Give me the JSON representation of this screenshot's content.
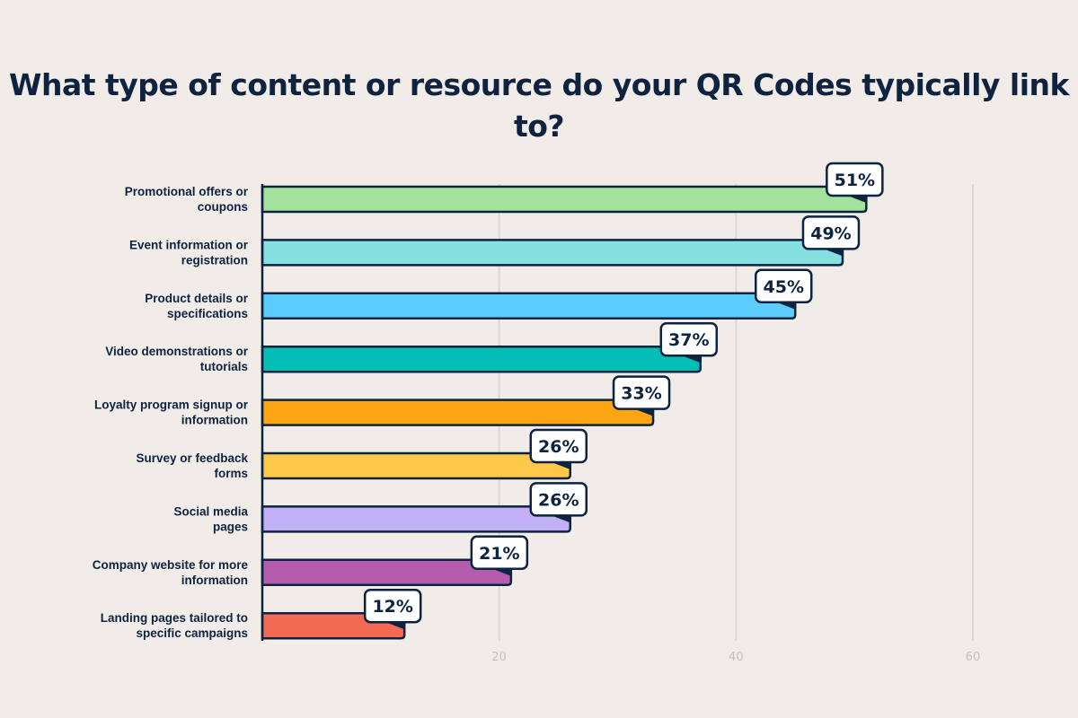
{
  "chart_data": {
    "type": "bar",
    "orientation": "horizontal",
    "title": "What type of content or resource do your QR Codes typically link to?",
    "categories": [
      "Promotional offers or coupons",
      "Event information or registration",
      "Product details or specifications",
      "Video demonstrations or tutorials",
      "Loyalty program signup or information",
      "Survey or feedback forms",
      "Social media pages",
      "Company website for more information",
      "Landing pages tailored to specific campaigns"
    ],
    "category_lines": [
      [
        "Promotional offers or",
        "coupons"
      ],
      [
        "Event information or",
        "registration"
      ],
      [
        "Product details or",
        "specifications"
      ],
      [
        "Video demonstrations or",
        "tutorials"
      ],
      [
        "Loyalty program signup or",
        "information"
      ],
      [
        "Survey or feedback",
        "forms"
      ],
      [
        "Social media",
        "pages"
      ],
      [
        "Company website for more",
        "information"
      ],
      [
        "Landing pages tailored to",
        "specific campaigns"
      ]
    ],
    "values": [
      51,
      49,
      45,
      37,
      33,
      26,
      26,
      21,
      12
    ],
    "data_labels": [
      "51%",
      "49%",
      "45%",
      "37%",
      "33%",
      "26%",
      "26%",
      "21%",
      "12%"
    ],
    "colors": [
      "#a2e29d",
      "#86e0e0",
      "#5bcdfc",
      "#04bdb5",
      "#fea514",
      "#fec84a",
      "#c1b0f5",
      "#b45cae",
      "#f26a52"
    ],
    "xlim": [
      0,
      60
    ],
    "xticks": [
      "20",
      "40",
      "60"
    ],
    "xtick_values": [
      20,
      40,
      60
    ],
    "xlabel": "",
    "ylabel": "",
    "grid": true,
    "outline_color": "#0d2340",
    "background": "#f1ece8"
  }
}
